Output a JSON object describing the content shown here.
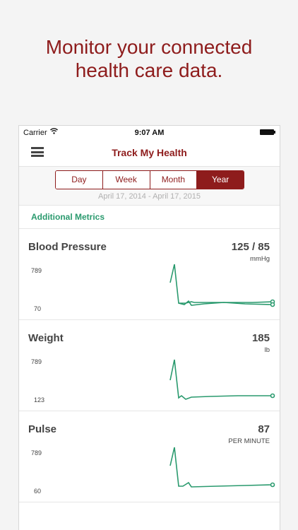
{
  "promo": {
    "line1": "Monitor your connected",
    "line2": "health care data."
  },
  "status_bar": {
    "carrier": "Carrier",
    "time": "9:07 AM",
    "wifi_icon": "wifi-icon",
    "battery_icon": "battery-icon"
  },
  "nav": {
    "title": "Track My Health",
    "menu_icon": "hamburger-menu-icon"
  },
  "segments": {
    "items": [
      "Day",
      "Week",
      "Month",
      "Year"
    ],
    "selected": "Year"
  },
  "date_range": "April 17, 2014 - April 17, 2015",
  "section": {
    "title": "Additional Metrics"
  },
  "colors": {
    "brand": "#8e1c1c",
    "accent": "#2a9a6e"
  },
  "metrics": [
    {
      "name": "Blood Pressure",
      "value": "125 / 85",
      "unit": "mmHg",
      "y_max": "789",
      "y_min": "70"
    },
    {
      "name": "Weight",
      "value": "185",
      "unit": "lb",
      "y_max": "789",
      "y_min": "123"
    },
    {
      "name": "Pulse",
      "value": "87",
      "unit": "PER MINUTE",
      "y_max": "789",
      "y_min": "60"
    }
  ]
}
